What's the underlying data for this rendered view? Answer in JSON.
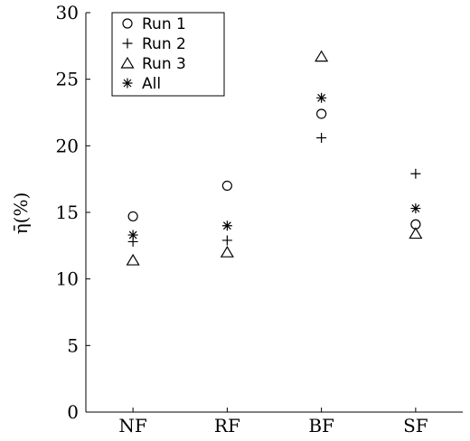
{
  "chart_data": {
    "type": "scatter",
    "categories": [
      "NF",
      "RF",
      "BF",
      "SF"
    ],
    "ylabel": "η̄(%)",
    "ylim": [
      0,
      30
    ],
    "yticks": [
      0,
      5,
      10,
      15,
      20,
      25,
      30
    ],
    "grid": false,
    "legend_placement": "top-left",
    "series": [
      {
        "name": "Run 1",
        "marker": "circle",
        "values": [
          14.7,
          17.0,
          22.4,
          14.1
        ]
      },
      {
        "name": "Run 2",
        "marker": "plus",
        "values": [
          12.8,
          12.9,
          20.6,
          17.9
        ]
      },
      {
        "name": "Run 3",
        "marker": "triangle",
        "values": [
          11.4,
          12.0,
          26.7,
          13.4
        ]
      },
      {
        "name": "All",
        "marker": "asterisk",
        "values": [
          13.3,
          14.0,
          23.6,
          15.3
        ]
      }
    ]
  }
}
